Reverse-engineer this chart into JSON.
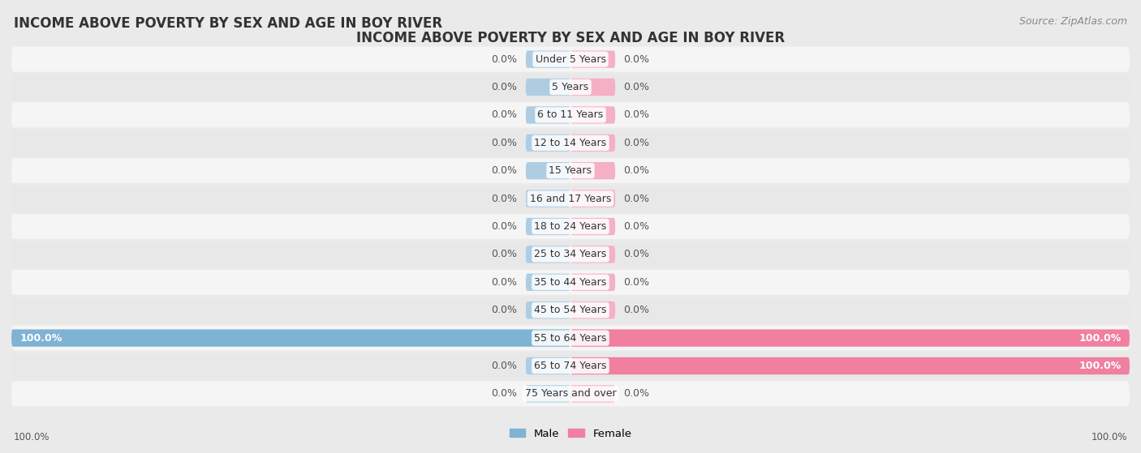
{
  "title": "INCOME ABOVE POVERTY BY SEX AND AGE IN BOY RIVER",
  "source": "Source: ZipAtlas.com",
  "categories": [
    "Under 5 Years",
    "5 Years",
    "6 to 11 Years",
    "12 to 14 Years",
    "15 Years",
    "16 and 17 Years",
    "18 to 24 Years",
    "25 to 34 Years",
    "35 to 44 Years",
    "45 to 54 Years",
    "55 to 64 Years",
    "65 to 74 Years",
    "75 Years and over"
  ],
  "male": [
    0.0,
    0.0,
    0.0,
    0.0,
    0.0,
    0.0,
    0.0,
    0.0,
    0.0,
    0.0,
    100.0,
    0.0,
    0.0
  ],
  "female": [
    0.0,
    0.0,
    0.0,
    0.0,
    0.0,
    0.0,
    0.0,
    0.0,
    0.0,
    0.0,
    100.0,
    100.0,
    0.0
  ],
  "male_color": "#7fb3d3",
  "female_color": "#f07fa0",
  "male_color_light": "#aecde3",
  "female_color_light": "#f5b0c5",
  "bg_color": "#eaeaea",
  "row_color_odd": "#f5f5f5",
  "row_color_even": "#e8e8e8",
  "max_val": 100.0,
  "stub_val": 8.0,
  "bar_height": 0.62,
  "label_fontsize": 9,
  "cat_fontsize": 9,
  "title_fontsize": 12,
  "source_fontsize": 9
}
